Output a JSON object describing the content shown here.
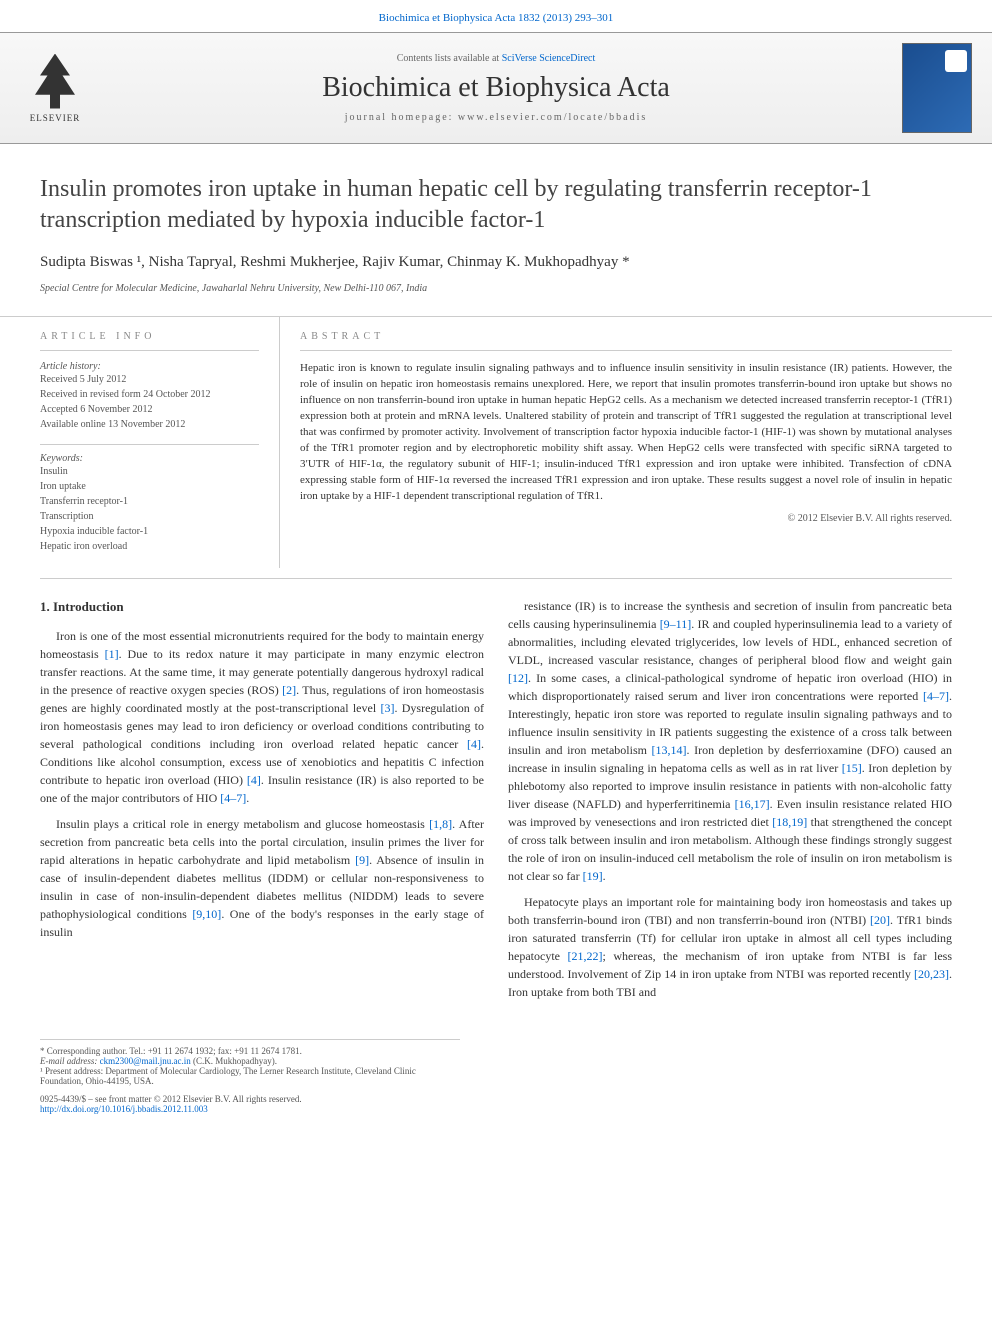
{
  "header": {
    "top_link": "Biochimica et Biophysica Acta 1832 (2013) 293–301",
    "contents_prefix": "Contents lists available at ",
    "contents_link": "SciVerse ScienceDirect",
    "journal_name": "Biochimica et Biophysica Acta",
    "homepage_label": "journal homepage: www.elsevier.com/locate/bbadis",
    "elsevier_label": "ELSEVIER"
  },
  "title": "Insulin promotes iron uptake in human hepatic cell by regulating transferrin receptor-1 transcription mediated by hypoxia inducible factor-1",
  "authors": "Sudipta Biswas ¹, Nisha Tapryal, Reshmi Mukherjee, Rajiv Kumar, Chinmay K. Mukhopadhyay *",
  "affiliation": "Special Centre for Molecular Medicine, Jawaharlal Nehru University, New Delhi-110 067, India",
  "article_info": {
    "heading": "ARTICLE INFO",
    "history_label": "Article history:",
    "history": [
      "Received 5 July 2012",
      "Received in revised form 24 October 2012",
      "Accepted 6 November 2012",
      "Available online 13 November 2012"
    ],
    "keywords_label": "Keywords:",
    "keywords": [
      "Insulin",
      "Iron uptake",
      "Transferrin receptor-1",
      "Transcription",
      "Hypoxia inducible factor-1",
      "Hepatic iron overload"
    ]
  },
  "abstract": {
    "heading": "ABSTRACT",
    "text": "Hepatic iron is known to regulate insulin signaling pathways and to influence insulin sensitivity in insulin resistance (IR) patients. However, the role of insulin on hepatic iron homeostasis remains unexplored. Here, we report that insulin promotes transferrin-bound iron uptake but shows no influence on non transferrin-bound iron uptake in human hepatic HepG2 cells. As a mechanism we detected increased transferrin receptor-1 (TfR1) expression both at protein and mRNA levels. Unaltered stability of protein and transcript of TfR1 suggested the regulation at transcriptional level that was confirmed by promoter activity. Involvement of transcription factor hypoxia inducible factor-1 (HIF-1) was shown by mutational analyses of the TfR1 promoter region and by electrophoretic mobility shift assay. When HepG2 cells were transfected with specific siRNA targeted to 3′UTR of HIF-1α, the regulatory subunit of HIF-1; insulin-induced TfR1 expression and iron uptake were inhibited. Transfection of cDNA expressing stable form of HIF-1α reversed the increased TfR1 expression and iron uptake. These results suggest a novel role of insulin in hepatic iron uptake by a HIF-1 dependent transcriptional regulation of TfR1.",
    "copyright": "© 2012 Elsevier B.V. All rights reserved."
  },
  "intro": {
    "heading": "1. Introduction",
    "p1": "Iron is one of the most essential micronutrients required for the body to maintain energy homeostasis [1]. Due to its redox nature it may participate in many enzymic electron transfer reactions. At the same time, it may generate potentially dangerous hydroxyl radical in the presence of reactive oxygen species (ROS) [2]. Thus, regulations of iron homeostasis genes are highly coordinated mostly at the post-transcriptional level [3]. Dysregulation of iron homeostasis genes may lead to iron deficiency or overload conditions contributing to several pathological conditions including iron overload related hepatic cancer [4]. Conditions like alcohol consumption, excess use of xenobiotics and hepatitis C infection contribute to hepatic iron overload (HIO) [4]. Insulin resistance (IR) is also reported to be one of the major contributors of HIO [4–7].",
    "p2": "Insulin plays a critical role in energy metabolism and glucose homeostasis [1,8]. After secretion from pancreatic beta cells into the portal circulation, insulin primes the liver for rapid alterations in hepatic carbohydrate and lipid metabolism [9]. Absence of insulin in case of insulin-dependent diabetes mellitus (IDDM) or cellular non-responsiveness to insulin in case of non-insulin-dependent diabetes mellitus (NIDDM) leads to severe pathophysiological conditions [9,10]. One of the body's responses in the early stage of insulin",
    "p3": "resistance (IR) is to increase the synthesis and secretion of insulin from pancreatic beta cells causing hyperinsulinemia [9–11]. IR and coupled hyperinsulinemia lead to a variety of abnormalities, including elevated triglycerides, low levels of HDL, enhanced secretion of VLDL, increased vascular resistance, changes of peripheral blood flow and weight gain [12]. In some cases, a clinical-pathological syndrome of hepatic iron overload (HIO) in which disproportionately raised serum and liver iron concentrations were reported [4–7]. Interestingly, hepatic iron store was reported to regulate insulin signaling pathways and to influence insulin sensitivity in IR patients suggesting the existence of a cross talk between insulin and iron metabolism [13,14]. Iron depletion by desferrioxamine (DFO) caused an increase in insulin signaling in hepatoma cells as well as in rat liver [15]. Iron depletion by phlebotomy also reported to improve insulin resistance in patients with non-alcoholic fatty liver disease (NAFLD) and hyperferritinemia [16,17]. Even insulin resistance related HIO was improved by venesections and iron restricted diet [18,19] that strengthened the concept of cross talk between insulin and iron metabolism. Although these findings strongly suggest the role of iron on insulin-induced cell metabolism the role of insulin on iron metabolism is not clear so far [19].",
    "p4": "Hepatocyte plays an important role for maintaining body iron homeostasis and takes up both transferrin-bound iron (TBI) and non transferrin-bound iron (NTBI) [20]. TfR1 binds iron saturated transferrin (Tf) for cellular iron uptake in almost all cell types including hepatocyte [21,22]; whereas, the mechanism of iron uptake from NTBI is far less understood. Involvement of Zip 14 in iron uptake from NTBI was reported recently [20,23]. Iron uptake from both TBI and"
  },
  "footnotes": {
    "corr": "* Corresponding author. Tel.: +91 11 2674 1932; fax: +91 11 2674 1781.",
    "email_label": "E-mail address: ",
    "email": "ckm2300@mail.jnu.ac.in",
    "email_suffix": " (C.K. Mukhopadhyay).",
    "present": "¹ Present address: Department of Molecular Cardiology, The Lerner Research Institute, Cleveland Clinic Foundation, Ohio-44195, USA."
  },
  "bottom": {
    "issn": "0925-4439/$ – see front matter © 2012 Elsevier B.V. All rights reserved.",
    "doi": "http://dx.doi.org/10.1016/j.bbadis.2012.11.003"
  },
  "colors": {
    "link": "#0066cc",
    "text": "#333333",
    "muted": "#555555"
  }
}
